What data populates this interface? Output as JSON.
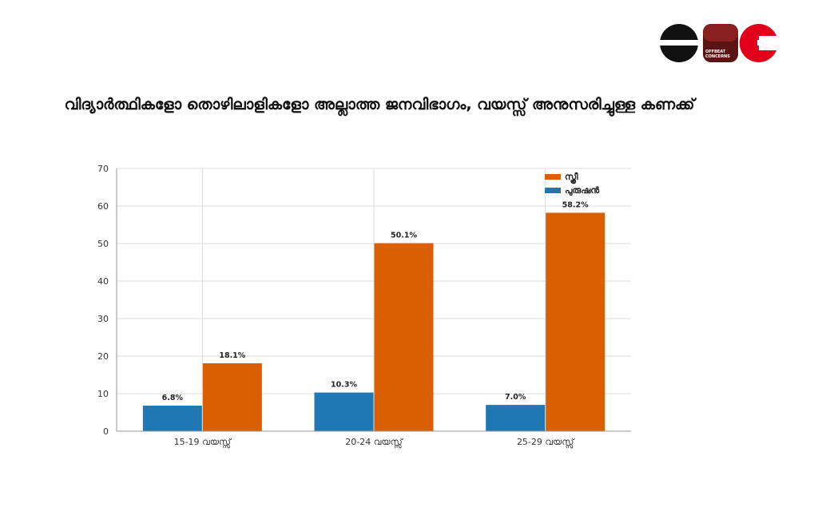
{
  "logo": {
    "text_line1": "OFFBEAT",
    "text_line2": "CONCERNS",
    "colors": {
      "black": "#111111",
      "red": "#e3001b",
      "dark_red": "#6b1a1a"
    }
  },
  "chart_data": {
    "type": "bar",
    "title": "വിദ്യാർത്ഥികളോ തൊഴിലാളികളോ അല്ലാത്ത ജനവിഭാഗം, വയസ്സ് അനുസരിച്ചുള്ള കണക്ക്",
    "categories": [
      "15-19 വയസ്സ്",
      "20-24 വയസ്സ്",
      "25-29 വയസ്സ്"
    ],
    "series": [
      {
        "name": "പുരുഷൻ",
        "values": [
          6.8,
          10.3,
          7.0
        ],
        "labels": [
          "6.8%",
          "10.3%",
          "7.0%"
        ],
        "color": "#1f77b4"
      },
      {
        "name": "സ്ത്രീ",
        "values": [
          18.1,
          50.1,
          58.2
        ],
        "labels": [
          "18.1%",
          "50.1%",
          "58.2%"
        ],
        "color": "#d95f02"
      }
    ],
    "yticks": [
      "0",
      "10",
      "20",
      "30",
      "40",
      "50",
      "60",
      "70"
    ],
    "ylim": [
      0,
      70
    ],
    "legend_order": [
      "സ്ത്രീ",
      "പുരുഷൻ"
    ],
    "legend_position": "top-right",
    "grid": true
  }
}
